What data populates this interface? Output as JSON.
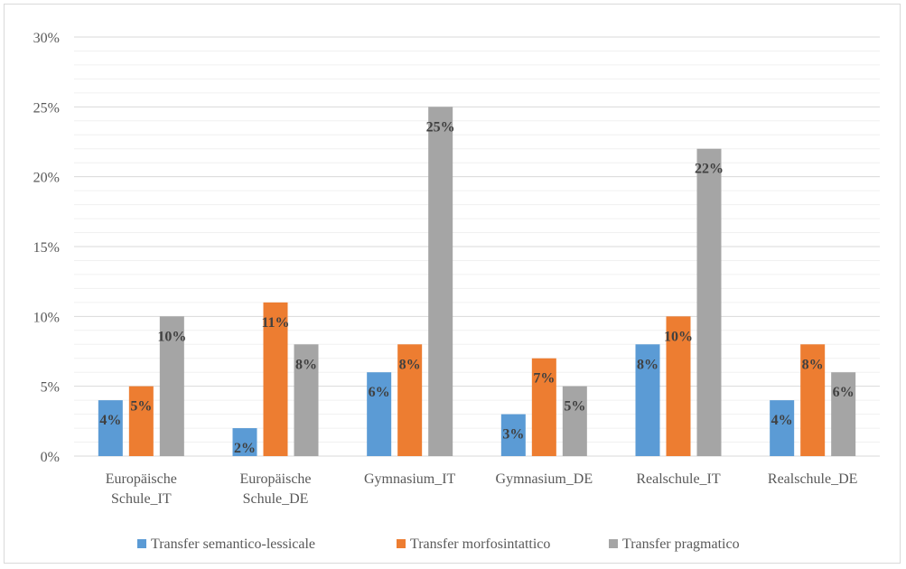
{
  "chart_data": {
    "type": "bar",
    "categories": [
      [
        "Europäische",
        "Schule_IT"
      ],
      [
        "Europäische",
        "Schule_DE"
      ],
      [
        "Gymnasium_IT"
      ],
      [
        "Gymnasium_DE"
      ],
      [
        "Realschule_IT"
      ],
      [
        "Realschule_DE"
      ]
    ],
    "series": [
      {
        "name": "Transfer semantico-lessicale",
        "color": "#5b9bd5",
        "values": [
          4,
          2,
          6,
          3,
          8,
          4
        ],
        "labels": [
          "4%",
          "2%",
          "6%",
          "3%",
          "8%",
          "4%"
        ]
      },
      {
        "name": "Transfer morfosintattico",
        "color": "#ed7d31",
        "values": [
          5,
          11,
          8,
          7,
          10,
          8
        ],
        "labels": [
          "5%",
          "11%",
          "8%",
          "7%",
          "10%",
          "8%"
        ]
      },
      {
        "name": "Transfer pragmatico",
        "color": "#a5a5a5",
        "values": [
          10,
          8,
          25,
          5,
          22,
          6
        ],
        "labels": [
          "10%",
          "8%",
          "25%",
          "5%",
          "22%",
          "6%"
        ]
      }
    ],
    "ylim": [
      0,
      30
    ],
    "yticks": [
      "0%",
      "5%",
      "10%",
      "15%",
      "20%",
      "25%",
      "30%"
    ],
    "major_step": 5,
    "minor_step": 1,
    "grid": true,
    "legend_position": "bottom"
  }
}
